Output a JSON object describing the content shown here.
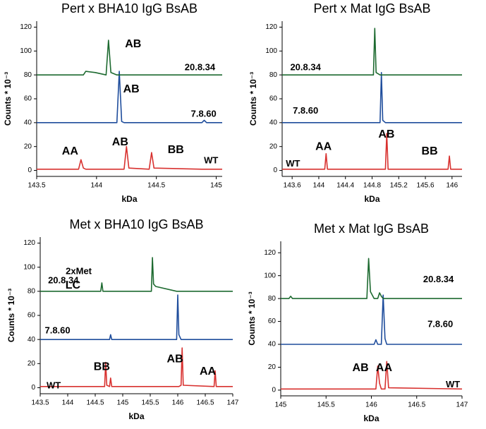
{
  "chart_data": [
    {
      "type": "line",
      "title": "Pert x BHA10 IgG BsAB",
      "xlabel": "kDa",
      "ylabel": "Counts * 10⁻³",
      "x": [
        143.5,
        143.85,
        143.87,
        143.89,
        143.91,
        143.99,
        144.08,
        144.1,
        144.12,
        144.17,
        144.19,
        144.21,
        144.23,
        144.25,
        144.27,
        144.44,
        144.46,
        144.48,
        144.88,
        144.9,
        144.92,
        145.05
      ],
      "xlim": [
        143.5,
        145.05
      ],
      "xticks": [
        143.5,
        144,
        144.5,
        145
      ],
      "ylim": [
        -5,
        125
      ],
      "yticks": [
        0,
        20,
        40,
        60,
        80,
        100,
        120
      ],
      "series": [
        {
          "name": "WT",
          "color": "#d8312f",
          "values": [
            1,
            1,
            9,
            2,
            1,
            1,
            1,
            1,
            1,
            1,
            1,
            1,
            1,
            20,
            2,
            1,
            15,
            2,
            1,
            1,
            1,
            1
          ]
        },
        {
          "name": "7.8.60",
          "color": "#1f4d9c",
          "values": [
            40,
            40,
            40,
            40,
            40,
            40,
            40,
            40,
            40,
            40,
            83,
            41,
            40,
            40,
            40,
            40,
            40,
            40,
            40,
            42,
            40,
            40
          ]
        },
        {
          "name": "20.8.34",
          "color": "#1d6a30",
          "values": [
            80,
            80,
            80,
            80,
            83,
            82,
            80,
            109,
            82,
            80,
            80,
            80,
            80,
            80,
            80,
            80,
            80,
            80,
            80,
            80,
            80,
            80
          ]
        }
      ],
      "annotations": [
        "AB",
        "AB",
        "AA",
        "AB",
        "BB"
      ]
    },
    {
      "type": "line",
      "title": "Pert x Mat IgG BsAB",
      "xlabel": "kDa",
      "ylabel": "Counts * 10⁻³",
      "x": [
        143.45,
        144.09,
        144.11,
        144.13,
        144.82,
        144.84,
        144.86,
        144.92,
        144.94,
        144.96,
        145.0,
        145.02,
        145.04,
        145.94,
        145.96,
        145.98,
        146.15
      ],
      "xlim": [
        143.45,
        146.15
      ],
      "xticks": [
        143.6,
        144,
        144.4,
        144.8,
        145.2,
        145.6,
        146
      ],
      "ylim": [
        -5,
        125
      ],
      "yticks": [
        0,
        20,
        40,
        60,
        80,
        100,
        120
      ],
      "series": [
        {
          "name": "WT",
          "color": "#d8312f",
          "values": [
            1,
            1,
            14,
            1,
            1,
            1,
            1,
            1,
            1,
            1,
            1,
            31,
            1,
            1,
            12,
            1,
            1
          ]
        },
        {
          "name": "7.8.60",
          "color": "#1f4d9c",
          "values": [
            40,
            40,
            40,
            40,
            40,
            40,
            40,
            40,
            82,
            42,
            40,
            40,
            40,
            40,
            40,
            40,
            40
          ]
        },
        {
          "name": "20.8.34",
          "color": "#1d6a30",
          "values": [
            80,
            80,
            80,
            80,
            80,
            119,
            82,
            80,
            80,
            80,
            80,
            80,
            80,
            80,
            80,
            80,
            80
          ]
        }
      ],
      "annotations": [
        "AB",
        "AA",
        "BB"
      ]
    },
    {
      "type": "line",
      "title": "Met x BHA10 IgG BsAB",
      "xlabel": "kDa",
      "ylabel": "Counts * 10⁻³",
      "x": [
        143.5,
        144.6,
        144.62,
        144.64,
        144.67,
        144.69,
        144.71,
        144.76,
        144.78,
        144.8,
        145.52,
        145.54,
        145.56,
        145.6,
        145.98,
        146,
        146.02,
        146.06,
        146.08,
        146.1,
        146.66,
        146.68,
        146.7,
        147
      ],
      "xlim": [
        143.5,
        147
      ],
      "xticks": [
        143.5,
        144,
        144.5,
        145,
        145.5,
        146,
        146.5,
        147
      ],
      "ylim": [
        -5,
        125
      ],
      "yticks": [
        0,
        20,
        40,
        60,
        80,
        100,
        120
      ],
      "series": [
        {
          "name": "WT",
          "color": "#d8312f",
          "values": [
            1,
            1,
            1,
            1,
            1,
            21,
            2,
            1,
            8,
            1,
            1,
            1,
            1,
            1,
            1,
            1,
            1,
            2,
            33,
            2,
            1,
            14,
            1,
            1
          ]
        },
        {
          "name": "7.8.60",
          "color": "#1f4d9c",
          "values": [
            40,
            40,
            40,
            40,
            40,
            40,
            40,
            40,
            44,
            40,
            40,
            40,
            40,
            40,
            40,
            77,
            44,
            40,
            40,
            40,
            40,
            40,
            40,
            40
          ]
        },
        {
          "name": "20.8.34",
          "color": "#1d6a30",
          "values": [
            80,
            80,
            87,
            80,
            80,
            80,
            80,
            80,
            80,
            80,
            80,
            108,
            86,
            84,
            80,
            80,
            80,
            80,
            80,
            80,
            80,
            80,
            80,
            80
          ]
        }
      ],
      "annotations": [
        "2xMet",
        "LC",
        "BB",
        "AB",
        "AA"
      ]
    },
    {
      "type": "line",
      "title": "Met x Mat IgG BsAB",
      "xlabel": "kDa",
      "ylabel": "Counts * 10⁻³",
      "x": [
        145,
        145.09,
        145.11,
        145.13,
        145.95,
        145.97,
        145.99,
        146.03,
        146.05,
        146.07,
        146.09,
        146.11,
        146.13,
        146.15,
        146.17,
        146.19,
        147
      ],
      "xlim": [
        145,
        147
      ],
      "xticks": [
        145,
        145.5,
        146,
        146.5,
        147
      ],
      "ylim": [
        -5,
        130
      ],
      "yticks": [
        0,
        20,
        40,
        60,
        80,
        100,
        120
      ],
      "series": [
        {
          "name": "WT",
          "color": "#d8312f",
          "values": [
            1,
            1,
            1,
            1,
            1,
            1,
            1,
            1,
            1,
            21,
            6,
            1,
            1,
            1,
            25,
            2,
            1
          ]
        },
        {
          "name": "7.8.60",
          "color": "#1f4d9c",
          "values": [
            40,
            40,
            40,
            40,
            40,
            40,
            40,
            40,
            44,
            40,
            40,
            40,
            83,
            45,
            40,
            40,
            40
          ]
        },
        {
          "name": "20.8.34",
          "color": "#1d6a30",
          "values": [
            80,
            80,
            82,
            80,
            80,
            115,
            86,
            80,
            80,
            80,
            85,
            82,
            80,
            80,
            80,
            80,
            80
          ]
        }
      ],
      "annotations": [
        "AB",
        "AA"
      ]
    }
  ]
}
